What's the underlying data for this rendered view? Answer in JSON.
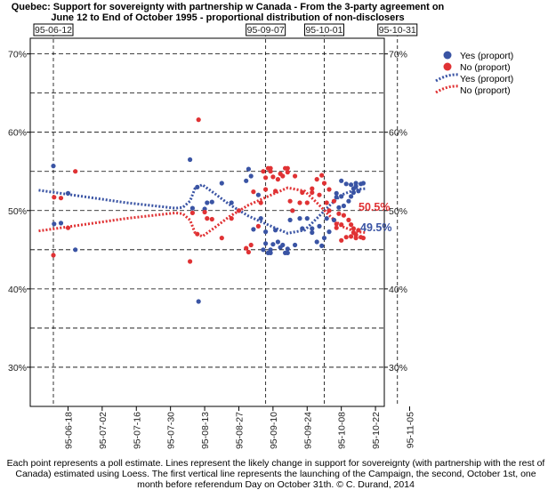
{
  "chart_data": {
    "type": "scatter",
    "title": "Quebec: Support for sovereignty with partnership w Canada - From the 3-party agreement on June 12 to End of October 1995 - proportional distribution of non-disclosers",
    "caption": "Each point represents a poll estimate. Lines represent the likely change in support for sovereignty (with partnership with the rest of Canada) estimated using Loess. The first vertical line represents the launching of the Campaign, the second, October 1st, one month before referendum Day on October 31th. © C. Durand, 2014",
    "y_range": [
      25,
      72
    ],
    "y_ticks": [
      30,
      40,
      50,
      60,
      70
    ],
    "y_tick_labels": [
      "30%",
      "40%",
      "50%",
      "60%",
      "70%"
    ],
    "x_range": [
      "95-06-06",
      "95-11-07"
    ],
    "x_ticks": [
      "95-06-18",
      "95-07-02",
      "95-07-16",
      "95-07-30",
      "95-08-13",
      "95-08-27",
      "95-09-10",
      "95-09-24",
      "95-10-08",
      "95-10-22",
      "95-11-05"
    ],
    "reference_lines": [
      {
        "date": "95-06-12",
        "label": "95-06-12"
      },
      {
        "date": "95-09-07",
        "label": "95-09-07"
      },
      {
        "date": "95-10-01",
        "label": "95-10-01"
      },
      {
        "date": "95-10-31",
        "label": "95-10-31"
      }
    ],
    "end_labels": {
      "no": "50.5%",
      "yes": "49.5%"
    },
    "legend": [
      {
        "key": "yes_point",
        "label": "Yes (proport)",
        "kind": "point",
        "color": "#3a54a4"
      },
      {
        "key": "no_point",
        "label": "No (proport)",
        "kind": "point",
        "color": "#e03234"
      },
      {
        "key": "yes_line",
        "label": "Yes (proport)",
        "kind": "line",
        "color": "#3a54a4"
      },
      {
        "key": "no_line",
        "label": "No (proport)",
        "kind": "line",
        "color": "#e03234"
      }
    ],
    "series": [
      {
        "name": "Yes (proport)",
        "color": "#3a54a4",
        "points": [
          [
            0.0,
            55.7
          ],
          [
            0.3,
            48.3
          ],
          [
            3.1,
            48.4
          ],
          [
            6.0,
            52.2
          ],
          [
            9.0,
            45.0
          ],
          [
            56.0,
            56.5
          ],
          [
            57.0,
            50.3
          ],
          [
            59.0,
            53.0
          ],
          [
            59.5,
            38.4
          ],
          [
            62.0,
            50.2
          ],
          [
            63.0,
            51.0
          ],
          [
            65.0,
            51.1
          ],
          [
            69.0,
            53.5
          ],
          [
            73.0,
            51.0
          ],
          [
            76.0,
            50.0
          ],
          [
            79.0,
            53.8
          ],
          [
            80.0,
            55.3
          ],
          [
            81.0,
            54.4
          ],
          [
            82.0,
            47.6
          ],
          [
            84.0,
            52.0
          ],
          [
            85.0,
            49.0
          ],
          [
            86.0,
            45.0
          ],
          [
            87.0,
            47.3
          ],
          [
            87.0,
            45.8
          ],
          [
            88.0,
            44.6
          ],
          [
            89.0,
            45.0
          ],
          [
            89.0,
            44.6
          ],
          [
            90.0,
            45.7
          ],
          [
            91.0,
            47.5
          ],
          [
            92.0,
            46.0
          ],
          [
            93.0,
            45.3
          ],
          [
            94.0,
            45.6
          ],
          [
            95.0,
            44.6
          ],
          [
            96.0,
            45.1
          ],
          [
            96.0,
            44.6
          ],
          [
            97.0,
            48.8
          ],
          [
            98.0,
            50.0
          ],
          [
            99.0,
            45.6
          ],
          [
            101.0,
            49.0
          ],
          [
            102.0,
            47.7
          ],
          [
            104.0,
            49.0
          ],
          [
            106.0,
            47.2
          ],
          [
            106.0,
            47.7
          ],
          [
            108.0,
            46.0
          ],
          [
            109.0,
            48.0
          ],
          [
            110.0,
            45.5
          ],
          [
            111.0,
            46.5
          ],
          [
            112.0,
            49.0
          ],
          [
            113.0,
            50.0
          ],
          [
            113.0,
            47.3
          ],
          [
            115.0,
            48.8
          ],
          [
            116.0,
            51.7
          ],
          [
            116.0,
            52.2
          ],
          [
            117.0,
            50.4
          ],
          [
            118.0,
            53.8
          ],
          [
            118.0,
            51.8
          ],
          [
            119.0,
            50.6
          ],
          [
            120.0,
            53.4
          ],
          [
            121.0,
            51.2
          ],
          [
            122.0,
            53.3
          ],
          [
            122.0,
            51.8
          ],
          [
            123.0,
            52.8
          ],
          [
            123.0,
            52.3
          ],
          [
            124.0,
            53.5
          ],
          [
            124.0,
            53.1
          ],
          [
            125.0,
            52.5
          ],
          [
            126.0,
            53.4
          ],
          [
            127.0,
            53.5
          ]
        ]
      },
      {
        "name": "No (proport)",
        "color": "#e03234",
        "points": [
          [
            0.0,
            44.3
          ],
          [
            0.3,
            51.7
          ],
          [
            3.1,
            51.6
          ],
          [
            6.0,
            47.8
          ],
          [
            9.0,
            55.0
          ],
          [
            56.0,
            43.5
          ],
          [
            57.0,
            49.7
          ],
          [
            59.0,
            47.0
          ],
          [
            59.5,
            61.6
          ],
          [
            62.0,
            49.8
          ],
          [
            63.0,
            49.0
          ],
          [
            65.0,
            48.9
          ],
          [
            69.0,
            46.5
          ],
          [
            73.0,
            49.0
          ],
          [
            76.0,
            50.0
          ],
          [
            79.0,
            45.2
          ],
          [
            80.0,
            44.7
          ],
          [
            81.0,
            45.6
          ],
          [
            82.0,
            52.4
          ],
          [
            84.0,
            48.0
          ],
          [
            85.0,
            51.0
          ],
          [
            86.0,
            55.0
          ],
          [
            87.0,
            52.7
          ],
          [
            87.0,
            54.2
          ],
          [
            88.0,
            55.4
          ],
          [
            89.0,
            55.0
          ],
          [
            89.0,
            55.4
          ],
          [
            90.0,
            54.3
          ],
          [
            91.0,
            52.5
          ],
          [
            92.0,
            54.0
          ],
          [
            93.0,
            54.7
          ],
          [
            94.0,
            54.4
          ],
          [
            95.0,
            55.4
          ],
          [
            96.0,
            54.9
          ],
          [
            96.0,
            55.4
          ],
          [
            97.0,
            51.2
          ],
          [
            98.0,
            50.0
          ],
          [
            99.0,
            54.4
          ],
          [
            101.0,
            51.0
          ],
          [
            102.0,
            52.3
          ],
          [
            104.0,
            51.0
          ],
          [
            106.0,
            52.8
          ],
          [
            106.0,
            52.3
          ],
          [
            108.0,
            54.0
          ],
          [
            109.0,
            52.0
          ],
          [
            110.0,
            54.5
          ],
          [
            111.0,
            53.5
          ],
          [
            112.0,
            51.0
          ],
          [
            113.0,
            50.0
          ],
          [
            113.0,
            52.7
          ],
          [
            115.0,
            51.2
          ],
          [
            116.0,
            48.3
          ],
          [
            116.0,
            47.8
          ],
          [
            117.0,
            49.6
          ],
          [
            118.0,
            46.2
          ],
          [
            118.0,
            48.2
          ],
          [
            119.0,
            49.4
          ],
          [
            120.0,
            46.6
          ],
          [
            121.0,
            48.8
          ],
          [
            122.0,
            46.7
          ],
          [
            122.0,
            48.2
          ],
          [
            123.0,
            47.2
          ],
          [
            123.0,
            47.7
          ],
          [
            124.0,
            46.5
          ],
          [
            124.0,
            46.9
          ],
          [
            125.0,
            47.5
          ],
          [
            126.0,
            46.6
          ],
          [
            127.0,
            46.5
          ]
        ]
      }
    ],
    "loess": {
      "yes": [
        [
          -6,
          52.6
        ],
        [
          10,
          51.9
        ],
        [
          30,
          51.0
        ],
        [
          50,
          50.3
        ],
        [
          53,
          50.4
        ],
        [
          56,
          51.2
        ],
        [
          58,
          52.8
        ],
        [
          61,
          53.3
        ],
        [
          66,
          52.2
        ],
        [
          72,
          50.8
        ],
        [
          80,
          49.3
        ],
        [
          90,
          47.9
        ],
        [
          96,
          47.1
        ],
        [
          103,
          47.5
        ],
        [
          108,
          49.0
        ],
        [
          113,
          50.6
        ],
        [
          118,
          52.0
        ],
        [
          124,
          52.7
        ],
        [
          128,
          52.8
        ]
      ],
      "no": [
        [
          -6,
          47.4
        ],
        [
          10,
          48.1
        ],
        [
          30,
          49.0
        ],
        [
          50,
          49.7
        ],
        [
          53,
          49.6
        ],
        [
          56,
          48.8
        ],
        [
          58,
          47.2
        ],
        [
          61,
          46.7
        ],
        [
          66,
          47.8
        ],
        [
          72,
          49.2
        ],
        [
          80,
          50.7
        ],
        [
          90,
          52.1
        ],
        [
          96,
          52.9
        ],
        [
          103,
          52.5
        ],
        [
          108,
          51.0
        ],
        [
          113,
          49.4
        ],
        [
          118,
          48.0
        ],
        [
          124,
          47.3
        ],
        [
          128,
          47.2
        ]
      ]
    }
  }
}
